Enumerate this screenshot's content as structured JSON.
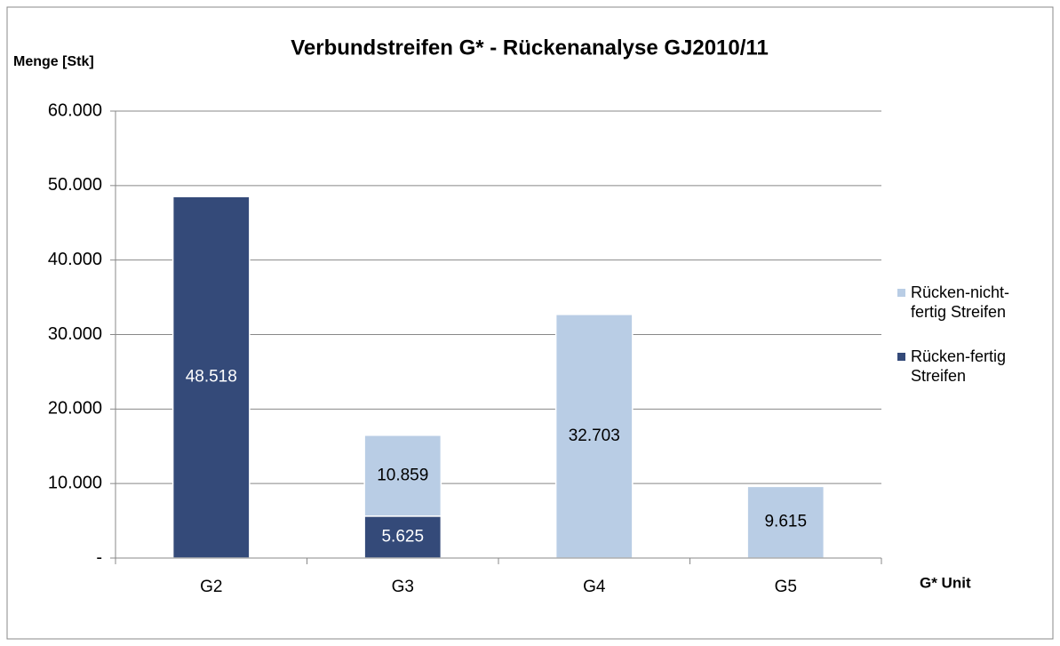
{
  "chart_data": {
    "type": "stacked_bar",
    "title": "Verbundstreifen G* - Rückenanalyse GJ2010/11",
    "y_label": "Menge [Stk]",
    "x_label": "G* Unit",
    "categories": [
      "G2",
      "G3",
      "G4",
      "G5"
    ],
    "series": [
      {
        "name": "Rücken-fertig Streifen",
        "color": "#344a79",
        "label_color": "#ffffff",
        "values": [
          48518,
          5625,
          null,
          null
        ],
        "value_labels": [
          "48.518",
          "5.625",
          null,
          null
        ]
      },
      {
        "name": "Rücken-nicht-fertig Streifen",
        "color": "#b9cde5",
        "label_color": "#000000",
        "values": [
          null,
          10859,
          32703,
          9615
        ],
        "value_labels": [
          null,
          "10.859",
          "32.703",
          "9.615"
        ]
      }
    ],
    "ylim": [
      0,
      60000
    ],
    "yticks": [
      {
        "value": 0,
        "label": "-"
      },
      {
        "value": 10000,
        "label": "10.000"
      },
      {
        "value": 20000,
        "label": "20.000"
      },
      {
        "value": 30000,
        "label": "30.000"
      },
      {
        "value": 40000,
        "label": "40.000"
      },
      {
        "value": 50000,
        "label": "50.000"
      },
      {
        "value": 60000,
        "label": "60.000"
      }
    ],
    "grid": true,
    "legend": "right"
  }
}
